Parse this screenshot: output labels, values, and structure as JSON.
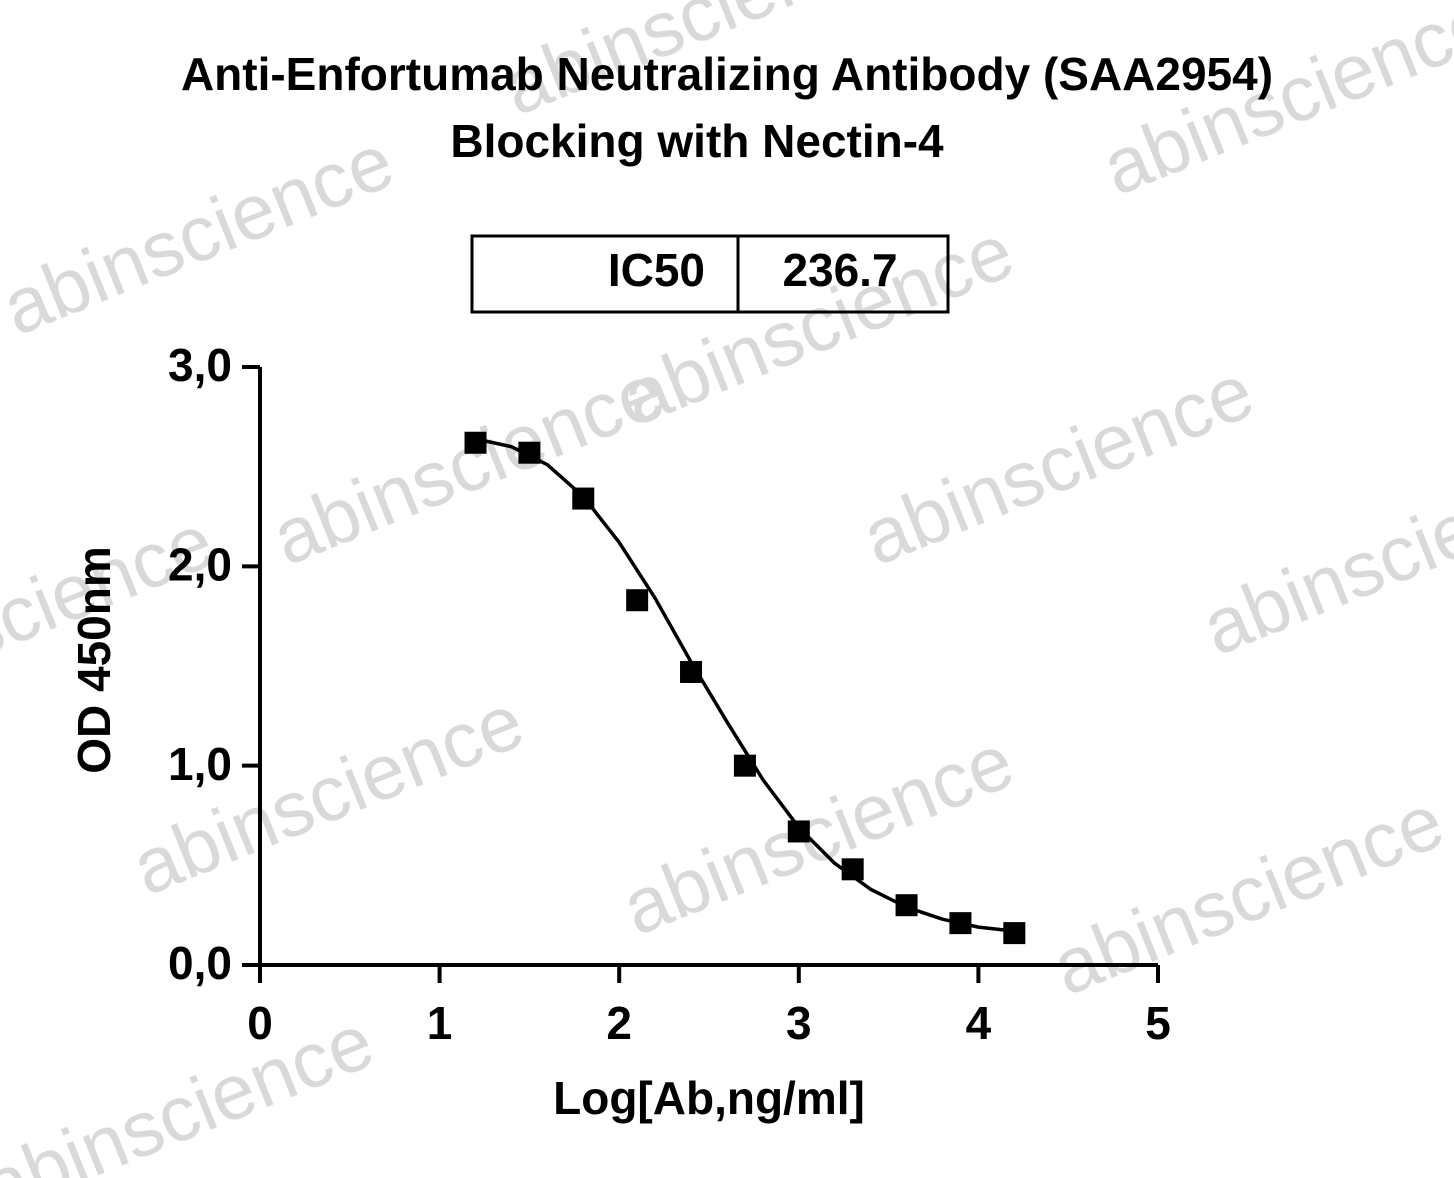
{
  "chart_data": {
    "type": "scatter",
    "title": [
      "Anti-Enfortumab Neutralizing Antibody (SAA2954)",
      "Blocking with Nectin-4"
    ],
    "watermark": "abinscience",
    "stats_table": {
      "label": "IC50",
      "value": "236.7"
    },
    "x_label": "Log[Ab,ng/ml]",
    "y_label": "OD 450nm",
    "xlim": [
      0,
      5
    ],
    "xticks": [
      0,
      1,
      2,
      3,
      4,
      5
    ],
    "ylim": [
      0,
      3
    ],
    "yticks": [
      {
        "value": 0,
        "label": "0,0"
      },
      {
        "value": 1,
        "label": "1,0"
      },
      {
        "value": 2,
        "label": "2,0"
      },
      {
        "value": 3,
        "label": "3,0"
      }
    ],
    "series": [
      {
        "kind": "points",
        "color": "#000000",
        "x": [
          1.2,
          1.5,
          1.8,
          2.1,
          2.4,
          2.7,
          3.0,
          3.3,
          3.6,
          3.9,
          4.2
        ],
        "values": [
          2.62,
          2.57,
          2.34,
          1.83,
          1.47,
          1.0,
          0.67,
          0.48,
          0.3,
          0.21,
          0.16
        ]
      },
      {
        "kind": "line",
        "color": "#000000",
        "x": [
          1.2,
          1.4,
          1.6,
          1.8,
          2.0,
          2.2,
          2.4,
          2.6,
          2.8,
          3.0,
          3.2,
          3.4,
          3.6,
          3.8,
          4.0,
          4.2
        ],
        "values": [
          2.64,
          2.6,
          2.51,
          2.35,
          2.12,
          1.84,
          1.52,
          1.22,
          0.93,
          0.69,
          0.51,
          0.38,
          0.29,
          0.23,
          0.19,
          0.17
        ]
      }
    ]
  }
}
